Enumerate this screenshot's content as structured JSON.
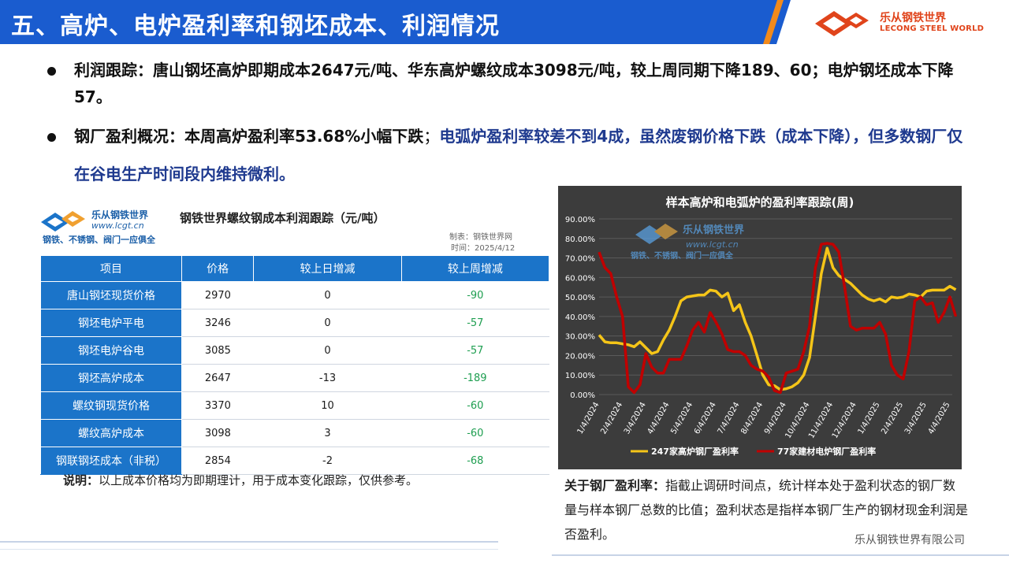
{
  "header": {
    "title": "五、高炉、电炉盈利率和钢坯成本、利润情况",
    "logo_cn": "乐从钢铁世界",
    "logo_en": "LECONG STEEL WORLD"
  },
  "bullets": {
    "profit_tracking": {
      "label": "利润跟踪：",
      "text": "唐山钢坯高炉即期成本2647元/吨、华东高炉螺纹成本3098元/吨，较上周同期下降189、60；电炉钢坯成本下降57。"
    },
    "overview": {
      "label": "钢厂盈利概况：",
      "text_black": "本周高炉盈利率53.68%小幅下跌",
      "sep": "；",
      "text_blue": "电弧炉盈利率较差不到4成，虽然废钢价格下跌（成本下降），但多数钢厂仅在谷电生产时间段内维持微利。"
    }
  },
  "table_card": {
    "logo_cn": "乐从钢铁世界",
    "logo_url": "www.lcgt.cn",
    "logo_slogan": "钢铁、不锈钢、阀门一应俱全",
    "title": "钢铁世界螺纹钢成本利润跟踪（元/吨）",
    "maker": "制表：钢铁世界网",
    "time": "时间：2025/4/12",
    "headers": [
      "项目",
      "价格",
      "较上日增减",
      "较上周增减"
    ],
    "rows": [
      {
        "item": "唐山钢坯现货价格",
        "price": "2970",
        "day": "0",
        "week": "-90"
      },
      {
        "item": "钢坯电炉平电",
        "price": "3246",
        "day": "0",
        "week": "-57"
      },
      {
        "item": "钢坯电炉谷电",
        "price": "3085",
        "day": "0",
        "week": "-57"
      },
      {
        "item": "钢坯高炉成本",
        "price": "2647",
        "day": "-13",
        "week": "-189"
      },
      {
        "item": "螺纹钢现货价格",
        "price": "3370",
        "day": "10",
        "week": "-60"
      },
      {
        "item": "螺纹高炉成本",
        "price": "3098",
        "day": "3",
        "week": "-60"
      },
      {
        "item": "钢联钢坯成本（非税）",
        "price": "2854",
        "day": "-2",
        "week": "-68"
      }
    ]
  },
  "note": {
    "label": "说明：",
    "text": "以上成本价格均为即期理计，用于成本变化跟踪，仅供参考。"
  },
  "chart_data": {
    "type": "line",
    "title": "样本高炉和电弧炉的盈利率跟踪(周)",
    "watermark": {
      "cn": "乐从钢铁世界",
      "url": "www.lcgt.cn",
      "slogan": "钢铁、不锈钢、阀门一应俱全"
    },
    "yticks": [
      "0.00%",
      "10.00%",
      "20.00%",
      "30.00%",
      "40.00%",
      "50.00%",
      "60.00%",
      "70.00%",
      "80.00%",
      "90.00%"
    ],
    "ylim": [
      0,
      90
    ],
    "xticks": [
      "1/4/2024",
      "2/4/2024",
      "3/4/2024",
      "4/4/2024",
      "5/4/2024",
      "6/4/2024",
      "7/4/2024",
      "8/4/2024",
      "9/4/2024",
      "10/4/2024",
      "11/4/2024",
      "12/4/2024",
      "1/4/2025",
      "2/4/2025",
      "3/4/2025",
      "4/4/2025"
    ],
    "grid": true,
    "legend_position": "bottom",
    "series": [
      {
        "name": "247家高炉钢厂盈利率",
        "color": "#f5c518",
        "x": [
          0.0,
          0.25,
          0.5,
          0.75,
          1.0,
          1.25,
          1.5,
          1.75,
          2.0,
          2.25,
          2.5,
          2.75,
          3.0,
          3.25,
          3.5,
          3.75,
          4.0,
          4.25,
          4.5,
          4.75,
          5.0,
          5.25,
          5.5,
          5.75,
          6.0,
          6.25,
          6.5,
          6.75,
          7.0,
          7.25,
          7.5,
          7.75,
          8.0,
          8.25,
          8.5,
          8.75,
          9.0,
          9.25,
          9.5,
          9.75,
          10.0,
          10.25,
          10.5,
          10.75,
          11.0,
          11.25,
          11.5,
          11.75,
          12.0,
          12.25,
          12.5,
          12.75,
          13.0,
          13.25,
          13.5,
          13.75,
          14.0,
          14.25,
          14.5,
          14.75,
          15.0,
          15.25
        ],
        "values": [
          30.5,
          27,
          26.5,
          26.5,
          26,
          25.5,
          24.5,
          27,
          24,
          21,
          22,
          28,
          33,
          40,
          48,
          50,
          50.5,
          51,
          51,
          53.5,
          53,
          50,
          52,
          43,
          46,
          37,
          30,
          20,
          10,
          5,
          4.5,
          2.5,
          3,
          4,
          6,
          10,
          19,
          40,
          62,
          75,
          65,
          61,
          59,
          57,
          54,
          51,
          49,
          48,
          49,
          47.5,
          50,
          49.5,
          50,
          51.5,
          51,
          50,
          53,
          53.5,
          53.5,
          53.5,
          55.5,
          53.7
        ]
      },
      {
        "name": "77家建材电炉钢厂盈利率",
        "color": "#c00000",
        "x": [
          0.0,
          0.25,
          0.5,
          0.75,
          1.0,
          1.25,
          1.5,
          1.75,
          2.0,
          2.25,
          2.5,
          2.75,
          3.0,
          3.25,
          3.5,
          3.75,
          4.0,
          4.25,
          4.5,
          4.75,
          5.0,
          5.25,
          5.5,
          5.75,
          6.0,
          6.25,
          6.5,
          6.75,
          7.0,
          7.25,
          7.5,
          7.75,
          8.0,
          8.25,
          8.5,
          8.75,
          9.0,
          9.25,
          9.5,
          9.75,
          10.0,
          10.25,
          10.5,
          10.75,
          11.0,
          11.25,
          11.5,
          11.75,
          12.0,
          12.25,
          12.5,
          12.75,
          13.0,
          13.25,
          13.5,
          13.75,
          14.0,
          14.25,
          14.5,
          14.75,
          15.0,
          15.25
        ],
        "values": [
          73,
          65,
          62,
          50,
          40,
          4,
          1,
          5,
          21,
          14,
          11,
          11,
          18,
          18,
          18,
          25,
          33,
          37,
          32,
          42,
          37,
          31,
          23,
          22,
          22,
          20,
          15,
          13,
          12,
          9,
          2,
          1,
          11,
          12,
          13,
          22,
          35,
          65,
          77,
          77.5,
          77,
          73,
          55,
          35,
          33,
          34,
          34,
          34,
          37,
          31,
          15,
          10,
          8,
          22,
          48,
          50,
          46,
          47,
          37,
          42,
          50,
          40
        ]
      }
    ]
  },
  "explain": {
    "label": "关于钢厂盈利率：",
    "text": "指截止调研时间点，统计样本处于盈利状态的钢厂数量与样本钢厂总数的比值；盈利状态是指样本钢厂生产的钢材现金利润是否盈利。"
  },
  "footer": {
    "company": "乐从钢铁世界有限公司"
  }
}
